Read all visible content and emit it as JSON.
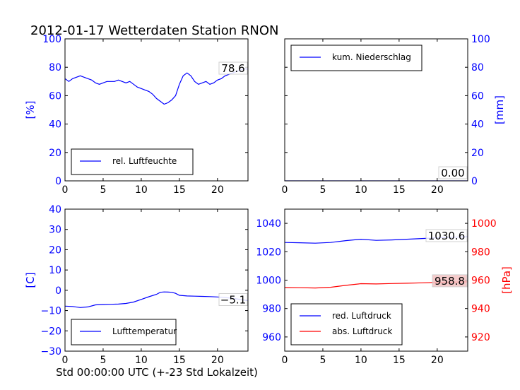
{
  "title": "2012-01-17 Wetterdaten Station RNON",
  "xlabel": "Std 00:00:00 UTC (+-23 Std Lokalzeit)",
  "colors": {
    "blue": "#0000ff",
    "red": "#ff0000",
    "black": "#000000",
    "red_box": "#f4c2c2"
  },
  "chart_data": [
    {
      "id": "humidity",
      "type": "line",
      "ylabel": "[%]",
      "ylabel_color": "blue",
      "xlim": [
        0,
        24
      ],
      "ylim": [
        0,
        100
      ],
      "xticks": [
        0,
        5,
        10,
        15,
        20
      ],
      "yticks": [
        0,
        20,
        40,
        60,
        80,
        100
      ],
      "legend_position": "lower-left",
      "annotation": "78.6",
      "series": [
        {
          "name": "rel. Luftfeuchte",
          "color": "blue",
          "x": [
            0,
            0.5,
            1,
            1.5,
            2,
            2.5,
            3,
            3.5,
            4,
            4.5,
            5,
            5.5,
            6,
            6.5,
            7,
            7.5,
            8,
            8.5,
            9,
            9.5,
            10,
            10.5,
            11,
            11.5,
            12,
            12.5,
            13,
            13.5,
            14,
            14.5,
            15,
            15.5,
            16,
            16.5,
            17,
            17.5,
            18,
            18.5,
            19,
            19.5,
            20,
            20.5,
            21,
            21.5,
            22,
            22.5,
            23,
            23.5,
            24
          ],
          "values": [
            72,
            70,
            72,
            73,
            74,
            73,
            72,
            71,
            69,
            68,
            69,
            70,
            70,
            70,
            71,
            70,
            69,
            70,
            68,
            66,
            65,
            64,
            63,
            61,
            58,
            56,
            54,
            55,
            57,
            60,
            68,
            74,
            76,
            74,
            70,
            68,
            69,
            70,
            68,
            69,
            71,
            72,
            74,
            75,
            76,
            77,
            78,
            79,
            78.6
          ]
        }
      ]
    },
    {
      "id": "precip",
      "type": "line",
      "ylabel": "[mm]",
      "ylabel_color": "blue",
      "yaxis_side": "right",
      "xlim": [
        0,
        24
      ],
      "ylim": [
        0,
        100
      ],
      "xticks": [
        0,
        5,
        10,
        15,
        20
      ],
      "yticks": [
        0,
        20,
        40,
        60,
        80,
        100
      ],
      "legend_position": "upper-left",
      "annotation": "0.00",
      "series": [
        {
          "name": "kum. Niederschlag",
          "color": "blue",
          "x": [
            0,
            24
          ],
          "values": [
            0,
            0
          ]
        }
      ]
    },
    {
      "id": "temperature",
      "type": "line",
      "ylabel": "[C]",
      "ylabel_color": "blue",
      "xlim": [
        0,
        24
      ],
      "ylim": [
        -30,
        40
      ],
      "xticks": [
        0,
        5,
        10,
        15,
        20
      ],
      "yticks": [
        -30,
        -20,
        -10,
        0,
        10,
        20,
        30,
        40
      ],
      "legend_position": "lower-left",
      "annotation": "-5.1",
      "series": [
        {
          "name": "Lufttemperatur",
          "color": "blue",
          "x": [
            0,
            1,
            2,
            3,
            4,
            5,
            6,
            7,
            8,
            9,
            10,
            11,
            12,
            12.5,
            13,
            13.5,
            14,
            14.5,
            15,
            16,
            17,
            18,
            19,
            20,
            21,
            22,
            23,
            24
          ],
          "values": [
            -7.8,
            -8.0,
            -8.5,
            -8.2,
            -7.2,
            -7.0,
            -6.9,
            -6.8,
            -6.5,
            -5.8,
            -4.5,
            -3.2,
            -2.0,
            -1.0,
            -0.8,
            -0.9,
            -1.0,
            -1.5,
            -2.5,
            -2.8,
            -2.9,
            -3.0,
            -3.1,
            -3.3,
            -3.6,
            -4.0,
            -4.5,
            -5.1
          ]
        }
      ]
    },
    {
      "id": "pressure",
      "type": "line",
      "ylabel_left": "",
      "ylabel_right": "[hPa]",
      "ylabel_right_color": "red",
      "xlim": [
        0,
        24
      ],
      "ylim": [
        950,
        1050
      ],
      "ylim_right": [
        910,
        1010
      ],
      "xticks": [
        0,
        5,
        10,
        15,
        20
      ],
      "yticks": [
        960,
        980,
        1000,
        1020,
        1040
      ],
      "yticks_right": [
        920,
        940,
        960,
        980,
        1000
      ],
      "legend_position": "lower-left",
      "annotations": [
        "1030.6",
        "958.8"
      ],
      "series": [
        {
          "name": "red. Luftdruck",
          "color": "blue",
          "axis": "left",
          "x": [
            0,
            2,
            4,
            6,
            8,
            10,
            12,
            14,
            16,
            18,
            20,
            22,
            24
          ],
          "values": [
            1026.5,
            1026.3,
            1026.0,
            1026.5,
            1027.8,
            1028.8,
            1028.0,
            1028.3,
            1028.8,
            1029.3,
            1029.8,
            1030.2,
            1030.6
          ]
        },
        {
          "name": "abs. Luftdruck",
          "color": "red",
          "axis": "right",
          "x": [
            0,
            2,
            4,
            6,
            8,
            10,
            12,
            14,
            16,
            18,
            20,
            22,
            24
          ],
          "values": [
            954.8,
            954.7,
            954.5,
            955.0,
            956.3,
            957.5,
            957.3,
            957.6,
            957.8,
            958.1,
            958.4,
            958.6,
            958.8
          ]
        }
      ]
    }
  ]
}
